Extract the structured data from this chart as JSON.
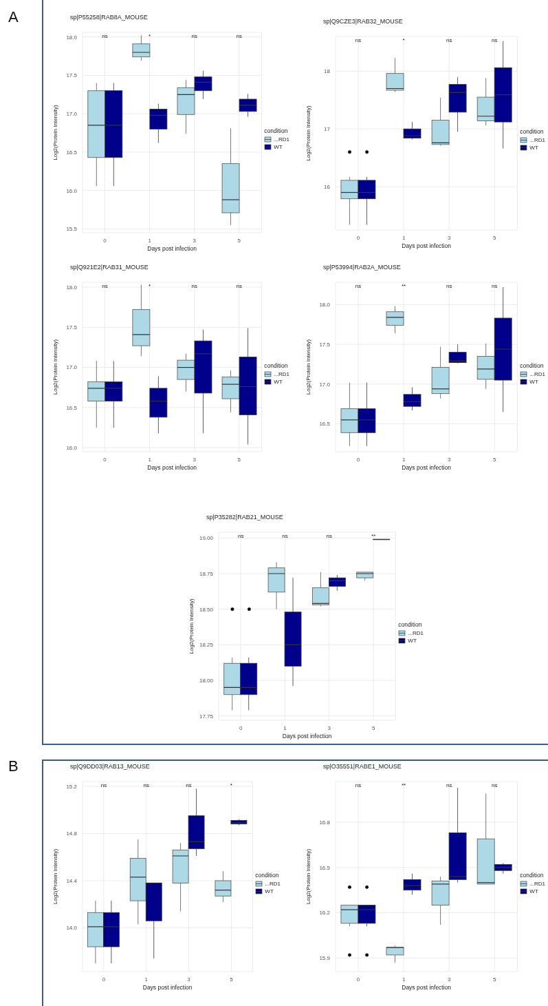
{
  "chart_data": [
    {
      "type": "box",
      "title": "sp|P55258|RAB8A_MOUSE",
      "xlabel": "Days post infection",
      "ylabel": "Log2(Protein Intensity)",
      "legend_title": "condition",
      "legend": "right",
      "grid": true,
      "categories": [
        "0",
        "1",
        "3",
        "5"
      ],
      "ylim": [
        15.45,
        18.06
      ],
      "yticks": [
        {
          "value": 15.5,
          "label": "15.5"
        },
        {
          "value": 16,
          "label": "16.0"
        },
        {
          "value": 16.5,
          "label": "16.5"
        },
        {
          "value": 17,
          "label": "17.0"
        },
        {
          "value": 17.5,
          "label": "17.5"
        },
        {
          "value": 18,
          "label": "18.0"
        }
      ],
      "annotations": [
        "A",
        "ns",
        "*",
        "ns",
        "ns"
      ],
      "series": [
        {
          "name": "...RD1",
          "color": "#add8e6",
          "boxes": [
            {
              "low": 16.06,
              "q1": 16.43,
              "median": 16.85,
              "q3": 17.3,
              "high": 17.4
            },
            {
              "low": 17.69,
              "q1": 17.74,
              "median": 17.8,
              "q3": 17.91,
              "high": 18.02
            },
            {
              "low": 16.74,
              "q1": 16.99,
              "median": 17.25,
              "q3": 17.34,
              "high": 17.44
            },
            {
              "low": 15.55,
              "q1": 15.71,
              "median": 15.88,
              "q3": 16.35,
              "high": 16.81
            }
          ]
        },
        {
          "name": "WT",
          "color": "#00008b",
          "boxes": [
            {
              "low": 16.06,
              "q1": 16.43,
              "median": 16.85,
              "q3": 17.3,
              "high": 17.4
            },
            {
              "low": 16.62,
              "q1": 16.8,
              "median": 16.98,
              "q3": 17.06,
              "high": 17.13
            },
            {
              "low": 17.19,
              "q1": 17.3,
              "median": 17.41,
              "q3": 17.48,
              "high": 17.56
            },
            {
              "low": 16.96,
              "q1": 17.03,
              "median": 17.11,
              "q3": 17.19,
              "high": 17.26
            }
          ]
        }
      ]
    },
    {
      "type": "box",
      "title": "sp|Q9CZE3|RAB32_MOUSE",
      "xlabel": "Days post infection",
      "ylabel": "Log2(Protein Intensity)",
      "legend_title": "condition",
      "legend": "right",
      "grid": true,
      "categories": [
        "0",
        "1",
        "3",
        "5"
      ],
      "ylim": [
        15.25,
        18.6
      ],
      "yticks": [
        16,
        17,
        18
      ],
      "annotations": [
        "ns",
        "*",
        "ns",
        "ns"
      ],
      "series": [
        {
          "name": "...RD1",
          "color": "#add8e6",
          "boxes": [
            {
              "low": 15.34,
              "q1": 15.79,
              "median": 15.9,
              "q3": 16.11,
              "high": 16.17,
              "outliers": [
                16.6
              ]
            },
            {
              "low": 17.64,
              "q1": 17.67,
              "median": 17.7,
              "q3": 17.96,
              "high": 18.23
            },
            {
              "low": 16.71,
              "q1": 16.73,
              "median": 16.76,
              "q3": 17.15,
              "high": 17.54
            },
            {
              "low": 17.06,
              "q1": 17.14,
              "median": 17.22,
              "q3": 17.55,
              "high": 17.88
            }
          ]
        },
        {
          "name": "WT",
          "color": "#00008b",
          "boxes": [
            {
              "low": 15.34,
              "q1": 15.79,
              "median": 15.9,
              "q3": 16.11,
              "high": 16.17,
              "outliers": [
                16.6
              ]
            },
            {
              "low": 16.82,
              "q1": 16.84,
              "median": 16.88,
              "q3": 17.0,
              "high": 17.12
            },
            {
              "low": 16.95,
              "q1": 17.29,
              "median": 17.63,
              "q3": 17.77,
              "high": 17.9
            },
            {
              "low": 16.66,
              "q1": 17.12,
              "median": 17.59,
              "q3": 18.06,
              "high": 18.52
            }
          ]
        }
      ]
    },
    {
      "type": "box",
      "title": "sp|Q921E2|RAB31_MOUSE",
      "xlabel": "Days post infection",
      "ylabel": "Log2(Protein Intensity)",
      "legend_title": "condition",
      "legend": "right",
      "grid": true,
      "categories": [
        "0",
        "1",
        "3",
        "5"
      ],
      "ylim": [
        15.95,
        18.06
      ],
      "yticks": [
        {
          "value": 16,
          "label": "16.0"
        },
        {
          "value": 16.5,
          "label": "16.5"
        },
        {
          "value": 17,
          "label": "17.0"
        },
        {
          "value": 17.5,
          "label": "17.5"
        },
        {
          "value": 18,
          "label": "18.0"
        }
      ],
      "annotations": [
        "ns",
        "*",
        "ns",
        "ns"
      ],
      "series": [
        {
          "name": "...RD1",
          "color": "#add8e6",
          "boxes": [
            {
              "low": 16.25,
              "q1": 16.58,
              "median": 16.74,
              "q3": 16.82,
              "high": 17.08
            },
            {
              "low": 17.14,
              "q1": 17.27,
              "median": 17.41,
              "q3": 17.72,
              "high": 18.03
            },
            {
              "low": 16.7,
              "q1": 16.85,
              "median": 17.0,
              "q3": 17.09,
              "high": 17.17
            },
            {
              "low": 16.44,
              "q1": 16.61,
              "median": 16.79,
              "q3": 16.88,
              "high": 16.96
            }
          ]
        },
        {
          "name": "WT",
          "color": "#00008b",
          "boxes": [
            {
              "low": 16.25,
              "q1": 16.58,
              "median": 16.74,
              "q3": 16.82,
              "high": 17.08
            },
            {
              "low": 16.18,
              "q1": 16.38,
              "median": 16.58,
              "q3": 16.74,
              "high": 16.89
            },
            {
              "low": 16.18,
              "q1": 16.68,
              "median": 17.17,
              "q3": 17.33,
              "high": 17.47
            },
            {
              "low": 16.04,
              "q1": 16.41,
              "median": 16.76,
              "q3": 17.13,
              "high": 17.49
            }
          ]
        }
      ]
    },
    {
      "type": "box",
      "title": "sp|P53994|RAB2A_MOUSE",
      "xlabel": "Days post infection",
      "ylabel": "Log2(Protein Intensity)",
      "legend_title": "condition",
      "legend": "right",
      "grid": true,
      "categories": [
        "0",
        "1",
        "3",
        "5"
      ],
      "ylim": [
        16.15,
        18.28
      ],
      "yticks": [
        {
          "value": 16.5,
          "label": "16.5"
        },
        {
          "value": 17,
          "label": "17.0"
        },
        {
          "value": 17.5,
          "label": "17.5"
        },
        {
          "value": 18,
          "label": "18.0"
        }
      ],
      "annotations": [
        "ns",
        "**",
        "ns",
        "ns"
      ],
      "series": [
        {
          "name": "...RD1",
          "color": "#add8e6",
          "boxes": [
            {
              "low": 16.22,
              "q1": 16.39,
              "median": 16.55,
              "q3": 16.69,
              "high": 17.02
            },
            {
              "low": 17.64,
              "q1": 17.74,
              "median": 17.84,
              "q3": 17.91,
              "high": 17.98
            },
            {
              "low": 16.82,
              "q1": 16.88,
              "median": 16.94,
              "q3": 17.21,
              "high": 17.47
            },
            {
              "low": 16.94,
              "q1": 17.06,
              "median": 17.19,
              "q3": 17.35,
              "high": 17.51
            }
          ]
        },
        {
          "name": "WT",
          "color": "#00008b",
          "boxes": [
            {
              "low": 16.22,
              "q1": 16.39,
              "median": 16.55,
              "q3": 16.69,
              "high": 17.02
            },
            {
              "low": 16.67,
              "q1": 16.72,
              "median": 16.78,
              "q3": 16.87,
              "high": 16.96
            },
            {
              "low": 17.26,
              "q1": 17.27,
              "median": 17.29,
              "q3": 17.4,
              "high": 17.5
            },
            {
              "low": 16.65,
              "q1": 17.05,
              "median": 17.44,
              "q3": 17.83,
              "high": 18.22
            }
          ]
        }
      ]
    },
    {
      "type": "box",
      "title": "sp|P35282|RAB21_MOUSE",
      "xlabel": "Days post infection",
      "ylabel": "Log2(Protein Intensity)",
      "legend_title": "condition",
      "legend": "right",
      "grid": true,
      "categories": [
        "0",
        "1",
        "3",
        "5"
      ],
      "ylim": [
        17.72,
        19.04
      ],
      "yticks": [
        {
          "value": 17.75,
          "label": "17.75"
        },
        {
          "value": 18,
          "label": "18.00"
        },
        {
          "value": 18.25,
          "label": "18.25"
        },
        {
          "value": 18.5,
          "label": "18.50"
        },
        {
          "value": 18.75,
          "label": "18.75"
        },
        {
          "value": 19,
          "label": "19.00"
        }
      ],
      "annotations": [
        "ns",
        "ns",
        "ns",
        "**"
      ],
      "series": [
        {
          "name": "...RD1",
          "color": "#add8e6",
          "boxes": [
            {
              "low": 17.79,
              "q1": 17.9,
              "median": 17.95,
              "q3": 18.12,
              "high": 18.16,
              "outliers": [
                18.5
              ]
            },
            {
              "low": 18.5,
              "q1": 18.62,
              "median": 18.75,
              "q3": 18.79,
              "high": 18.83
            },
            {
              "low": 18.52,
              "q1": 18.53,
              "median": 18.54,
              "q3": 18.65,
              "high": 18.76
            },
            {
              "low": 18.7,
              "q1": 18.72,
              "median": 18.75,
              "q3": 18.76,
              "high": 18.76
            }
          ]
        },
        {
          "name": "WT",
          "color": "#00008b",
          "boxes": [
            {
              "low": 17.79,
              "q1": 17.9,
              "median": 17.95,
              "q3": 18.12,
              "high": 18.16,
              "outliers": [
                18.5
              ]
            },
            {
              "low": 17.96,
              "q1": 18.1,
              "median": 18.25,
              "q3": 18.48,
              "high": 18.72
            },
            {
              "low": 18.63,
              "q1": 18.66,
              "median": 18.7,
              "q3": 18.72,
              "high": 18.74
            },
            {
              "low": 18.99,
              "q1": 18.99,
              "median": 18.99,
              "q3": 18.99,
              "high": 18.99
            }
          ]
        }
      ]
    },
    {
      "type": "box",
      "title": "sp|Q9DD03|RAB13_MOUSE",
      "xlabel": "Days post infection",
      "ylabel": "Log2(Protein Intensity)",
      "legend_title": "condition",
      "legend": "right",
      "grid": true,
      "categories": [
        "0",
        "1",
        "3",
        "5"
      ],
      "ylim": [
        13.63,
        15.24
      ],
      "yticks": [
        {
          "value": 14,
          "label": "14.0"
        },
        {
          "value": 14.4,
          "label": "14.4"
        },
        {
          "value": 14.8,
          "label": "14.8"
        },
        {
          "value": 15.2,
          "label": "15.2"
        }
      ],
      "annotations": [
        "B",
        "ns",
        "ns",
        "ns",
        "*"
      ],
      "series": [
        {
          "name": "...RD1",
          "color": "#add8e6",
          "boxes": [
            {
              "low": 13.7,
              "q1": 13.84,
              "median": 14.01,
              "q3": 14.13,
              "high": 14.23
            },
            {
              "low": 14.03,
              "q1": 14.23,
              "median": 14.43,
              "q3": 14.59,
              "high": 14.75
            },
            {
              "low": 14.14,
              "q1": 14.38,
              "median": 14.61,
              "q3": 14.66,
              "high": 14.72
            },
            {
              "low": 14.22,
              "q1": 14.27,
              "median": 14.32,
              "q3": 14.4,
              "high": 14.48
            }
          ]
        },
        {
          "name": "WT",
          "color": "#00008b",
          "boxes": [
            {
              "low": 13.7,
              "q1": 13.84,
              "median": 14.01,
              "q3": 14.13,
              "high": 14.23
            },
            {
              "low": 13.74,
              "q1": 14.06,
              "median": 14.38,
              "q3": 14.38,
              "high": 14.38
            },
            {
              "low": 14.61,
              "q1": 14.67,
              "median": 14.73,
              "q3": 14.95,
              "high": 15.18
            },
            {
              "low": 14.87,
              "q1": 14.88,
              "median": 14.89,
              "q3": 14.91,
              "high": 14.92
            }
          ]
        }
      ]
    },
    {
      "type": "box",
      "title": "sp|O35551|RABE1_MOUSE",
      "xlabel": "Days post infection",
      "ylabel": "Log2(Protein Intensity)",
      "legend_title": "condition",
      "legend": "right",
      "grid": true,
      "categories": [
        "0",
        "1",
        "3",
        "5"
      ],
      "ylim": [
        15.81,
        17.07
      ],
      "yticks": [
        {
          "value": 15.9,
          "label": "15.9"
        },
        {
          "value": 16.2,
          "label": "16.2"
        },
        {
          "value": 16.5,
          "label": "16.5"
        },
        {
          "value": 16.8,
          "label": "16.8"
        }
      ],
      "annotations": [
        "ns",
        "**",
        "ns",
        "ns"
      ],
      "series": [
        {
          "name": "...RD1",
          "color": "#add8e6",
          "boxes": [
            {
              "low": 16.11,
              "q1": 16.13,
              "median": 16.22,
              "q3": 16.25,
              "high": 16.25,
              "outliers": [
                16.37,
                15.92
              ]
            },
            {
              "low": 15.87,
              "q1": 15.92,
              "median": 15.97,
              "q3": 15.97,
              "high": 15.98
            },
            {
              "low": 16.12,
              "q1": 16.25,
              "median": 16.39,
              "q3": 16.41,
              "high": 16.44
            },
            {
              "low": 16.39,
              "q1": 16.39,
              "median": 16.4,
              "q3": 16.69,
              "high": 16.99
            }
          ]
        },
        {
          "name": "WT",
          "color": "#00008b",
          "boxes": [
            {
              "low": 16.11,
              "q1": 16.13,
              "median": 16.22,
              "q3": 16.25,
              "high": 16.25,
              "outliers": [
                16.37,
                15.92
              ]
            },
            {
              "low": 16.32,
              "q1": 16.35,
              "median": 16.38,
              "q3": 16.42,
              "high": 16.46
            },
            {
              "low": 16.4,
              "q1": 16.42,
              "median": 16.44,
              "q3": 16.73,
              "high": 17.03
            },
            {
              "low": 16.46,
              "q1": 16.48,
              "median": 16.5,
              "q3": 16.52,
              "high": 16.53
            }
          ]
        }
      ]
    }
  ]
}
